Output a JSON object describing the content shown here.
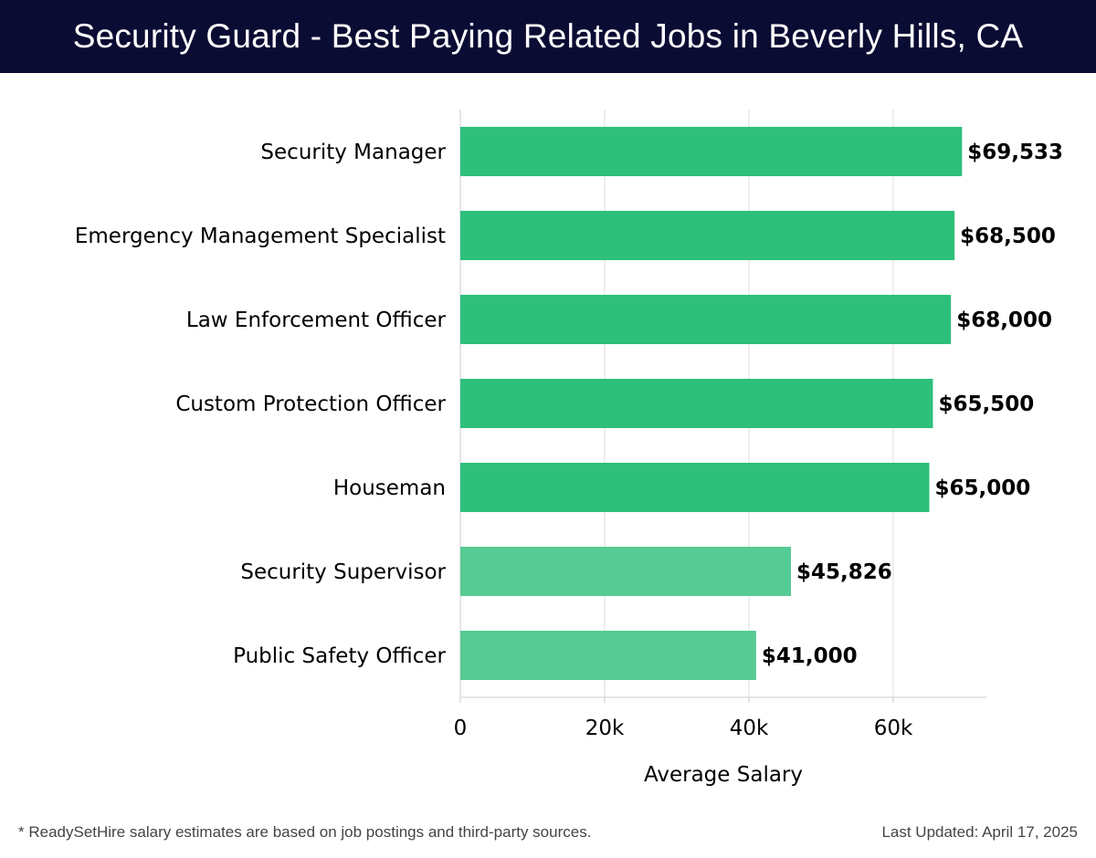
{
  "header": {
    "title": "Security Guard - Best Paying Related Jobs in Beverly Hills, CA"
  },
  "chart_data": {
    "type": "bar",
    "orientation": "horizontal",
    "categories": [
      "Security Manager",
      "Emergency Management Specialist",
      "Law Enforcement Officer",
      "Custom Protection Officer",
      "Houseman",
      "Security Supervisor",
      "Public Safety Officer"
    ],
    "values": [
      69533,
      68500,
      68000,
      65500,
      65000,
      45826,
      41000
    ],
    "value_labels": [
      "$69,533",
      "$68,500",
      "$68,000",
      "$65,500",
      "$65,000",
      "$45,826",
      "$41,000"
    ],
    "xlabel": "Average Salary",
    "ylabel": "",
    "xlim": [
      0,
      73000
    ],
    "xticks": [
      0,
      20000,
      40000,
      60000
    ],
    "xtick_labels": [
      "0",
      "20k",
      "40k",
      "60k"
    ],
    "grid": true,
    "colors": {
      "primary": "#2ebf7b",
      "secondary": "#57cb94",
      "gridline": "#dddddd",
      "axis": "#cccccc",
      "header_bg": "#0b0c33"
    },
    "highlight_count": 5
  },
  "footer": {
    "note": "* ReadySetHire salary estimates are based on job postings and third-party sources.",
    "updated_label": "Last Updated:",
    "updated_date": "April 17, 2025"
  }
}
